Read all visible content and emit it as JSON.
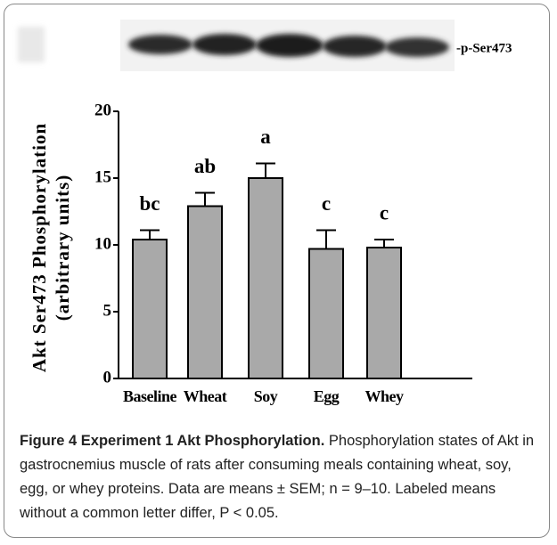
{
  "chart_data": {
    "type": "bar",
    "blot_label": "-p-Ser473",
    "ylabel": [
      "Akt Ser473 Phosphorylation",
      "(arbitrary units)"
    ],
    "categories": [
      "Baseline",
      "Wheat",
      "Soy",
      "Egg",
      "Whey"
    ],
    "values": [
      10.4,
      12.9,
      15.0,
      9.7,
      9.8
    ],
    "errors": [
      0.7,
      1.0,
      1.1,
      1.4,
      0.6
    ],
    "annotations": [
      "bc",
      "ab",
      "a",
      "c",
      "c"
    ],
    "color": "#a9a9a9",
    "ylim": [
      0,
      20
    ],
    "yticks": [
      0,
      5,
      10,
      15,
      20
    ]
  },
  "caption": {
    "label": "Figure 4 Experiment 1 Akt Phosphorylation.",
    "text": "Phosphorylation states of Akt in gastrocnemius muscle of rats after consuming meals containing wheat, soy, egg, or whey proteins. Data are means ± SEM; n = 9–10. Labeled means without a common letter differ, P < 0.05."
  }
}
